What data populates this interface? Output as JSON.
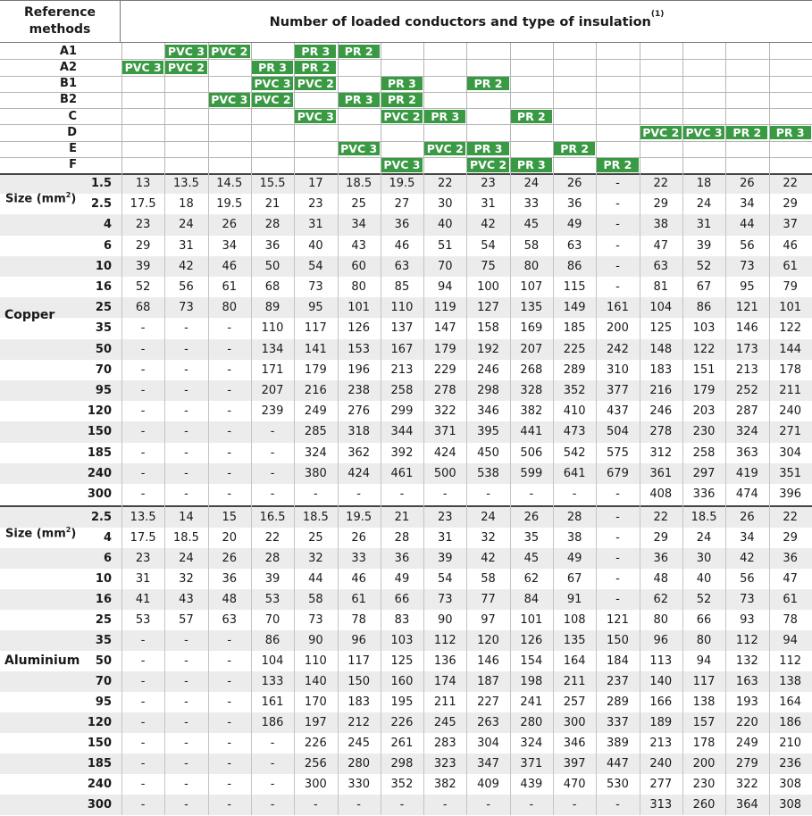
{
  "header": {
    "corner_label_line1": "Reference",
    "corner_label_line2": "methods",
    "title": "Number of loaded conductors and type of insulation",
    "title_note": "(1)"
  },
  "colors": {
    "tag_green": "#3a9a43",
    "stripe": "#ececec",
    "rule": "#9a9a9a"
  },
  "methods": [
    {
      "name": "A1",
      "tags": [
        {
          "col": 1,
          "label": "PVC 3"
        },
        {
          "col": 2,
          "label": "PVC 2"
        },
        {
          "col": 4,
          "label": "PR 3"
        },
        {
          "col": 5,
          "label": "PR 2"
        }
      ]
    },
    {
      "name": "A2",
      "tags": [
        {
          "col": 0,
          "label": "PVC 3"
        },
        {
          "col": 1,
          "label": "PVC 2"
        },
        {
          "col": 3,
          "label": "PR 3"
        },
        {
          "col": 4,
          "label": "PR 2"
        }
      ]
    },
    {
      "name": "B1",
      "tags": [
        {
          "col": 3,
          "label": "PVC 3"
        },
        {
          "col": 4,
          "label": "PVC 2"
        },
        {
          "col": 6,
          "label": "PR 3"
        },
        {
          "col": 8,
          "label": "PR 2"
        }
      ]
    },
    {
      "name": "B2",
      "tags": [
        {
          "col": 2,
          "label": "PVC 3"
        },
        {
          "col": 3,
          "label": "PVC 2"
        },
        {
          "col": 5,
          "label": "PR 3"
        },
        {
          "col": 6,
          "label": "PR 2"
        }
      ]
    },
    {
      "name": "C",
      "tags": [
        {
          "col": 4,
          "label": "PVC 3"
        },
        {
          "col": 6,
          "label": "PVC 2"
        },
        {
          "col": 7,
          "label": "PR 3"
        },
        {
          "col": 9,
          "label": "PR 2"
        }
      ]
    },
    {
      "name": "D",
      "tags": [
        {
          "col": 12,
          "label": "PVC 2"
        },
        {
          "col": 13,
          "label": "PVC 3"
        },
        {
          "col": 14,
          "label": "PR 2"
        },
        {
          "col": 15,
          "label": "PR 3"
        }
      ]
    },
    {
      "name": "E",
      "tags": [
        {
          "col": 5,
          "label": "PVC 3"
        },
        {
          "col": 7,
          "label": "PVC 2"
        },
        {
          "col": 8,
          "label": "PR 3"
        },
        {
          "col": 10,
          "label": "PR 2"
        }
      ]
    },
    {
      "name": "F",
      "tags": [
        {
          "col": 6,
          "label": "PVC 3"
        },
        {
          "col": 8,
          "label": "PVC 2"
        },
        {
          "col": 9,
          "label": "PR 3"
        },
        {
          "col": 11,
          "label": "PR 2"
        }
      ]
    }
  ],
  "sections": [
    {
      "name": "Copper",
      "size_label": "Size (mm",
      "size_sup": "2",
      "size_suffix": ")",
      "rows": [
        {
          "size": "1.5",
          "values": [
            "13",
            "13.5",
            "14.5",
            "15.5",
            "17",
            "18.5",
            "19.5",
            "22",
            "23",
            "24",
            "26",
            "-",
            "22",
            "18",
            "26",
            "22"
          ]
        },
        {
          "size": "2.5",
          "values": [
            "17.5",
            "18",
            "19.5",
            "21",
            "23",
            "25",
            "27",
            "30",
            "31",
            "33",
            "36",
            "-",
            "29",
            "24",
            "34",
            "29"
          ]
        },
        {
          "size": "4",
          "values": [
            "23",
            "24",
            "26",
            "28",
            "31",
            "34",
            "36",
            "40",
            "42",
            "45",
            "49",
            "-",
            "38",
            "31",
            "44",
            "37"
          ]
        },
        {
          "size": "6",
          "values": [
            "29",
            "31",
            "34",
            "36",
            "40",
            "43",
            "46",
            "51",
            "54",
            "58",
            "63",
            "-",
            "47",
            "39",
            "56",
            "46"
          ]
        },
        {
          "size": "10",
          "values": [
            "39",
            "42",
            "46",
            "50",
            "54",
            "60",
            "63",
            "70",
            "75",
            "80",
            "86",
            "-",
            "63",
            "52",
            "73",
            "61"
          ]
        },
        {
          "size": "16",
          "values": [
            "52",
            "56",
            "61",
            "68",
            "73",
            "80",
            "85",
            "94",
            "100",
            "107",
            "115",
            "-",
            "81",
            "67",
            "95",
            "79"
          ]
        },
        {
          "size": "25",
          "values": [
            "68",
            "73",
            "80",
            "89",
            "95",
            "101",
            "110",
            "119",
            "127",
            "135",
            "149",
            "161",
            "104",
            "86",
            "121",
            "101"
          ]
        },
        {
          "size": "35",
          "values": [
            "-",
            "-",
            "-",
            "110",
            "117",
            "126",
            "137",
            "147",
            "158",
            "169",
            "185",
            "200",
            "125",
            "103",
            "146",
            "122"
          ]
        },
        {
          "size": "50",
          "values": [
            "-",
            "-",
            "-",
            "134",
            "141",
            "153",
            "167",
            "179",
            "192",
            "207",
            "225",
            "242",
            "148",
            "122",
            "173",
            "144"
          ]
        },
        {
          "size": "70",
          "values": [
            "-",
            "-",
            "-",
            "171",
            "179",
            "196",
            "213",
            "229",
            "246",
            "268",
            "289",
            "310",
            "183",
            "151",
            "213",
            "178"
          ]
        },
        {
          "size": "95",
          "values": [
            "-",
            "-",
            "-",
            "207",
            "216",
            "238",
            "258",
            "278",
            "298",
            "328",
            "352",
            "377",
            "216",
            "179",
            "252",
            "211"
          ]
        },
        {
          "size": "120",
          "values": [
            "-",
            "-",
            "-",
            "239",
            "249",
            "276",
            "299",
            "322",
            "346",
            "382",
            "410",
            "437",
            "246",
            "203",
            "287",
            "240"
          ]
        },
        {
          "size": "150",
          "values": [
            "-",
            "-",
            "-",
            "-",
            "285",
            "318",
            "344",
            "371",
            "395",
            "441",
            "473",
            "504",
            "278",
            "230",
            "324",
            "271"
          ]
        },
        {
          "size": "185",
          "values": [
            "-",
            "-",
            "-",
            "-",
            "324",
            "362",
            "392",
            "424",
            "450",
            "506",
            "542",
            "575",
            "312",
            "258",
            "363",
            "304"
          ]
        },
        {
          "size": "240",
          "values": [
            "-",
            "-",
            "-",
            "-",
            "380",
            "424",
            "461",
            "500",
            "538",
            "599",
            "641",
            "679",
            "361",
            "297",
            "419",
            "351"
          ]
        },
        {
          "size": "300",
          "values": [
            "-",
            "-",
            "-",
            "-",
            "-",
            "-",
            "-",
            "-",
            "-",
            "-",
            "-",
            "-",
            "408",
            "336",
            "474",
            "396"
          ]
        }
      ]
    },
    {
      "name": "Aluminium",
      "size_label": "Size (mm",
      "size_sup": "2",
      "size_suffix": ")",
      "rows": [
        {
          "size": "2.5",
          "values": [
            "13.5",
            "14",
            "15",
            "16.5",
            "18.5",
            "19.5",
            "21",
            "23",
            "24",
            "26",
            "28",
            "-",
            "22",
            "18.5",
            "26",
            "22"
          ]
        },
        {
          "size": "4",
          "values": [
            "17.5",
            "18.5",
            "20",
            "22",
            "25",
            "26",
            "28",
            "31",
            "32",
            "35",
            "38",
            "-",
            "29",
            "24",
            "34",
            "29"
          ]
        },
        {
          "size": "6",
          "values": [
            "23",
            "24",
            "26",
            "28",
            "32",
            "33",
            "36",
            "39",
            "42",
            "45",
            "49",
            "-",
            "36",
            "30",
            "42",
            "36"
          ]
        },
        {
          "size": "10",
          "values": [
            "31",
            "32",
            "36",
            "39",
            "44",
            "46",
            "49",
            "54",
            "58",
            "62",
            "67",
            "-",
            "48",
            "40",
            "56",
            "47"
          ]
        },
        {
          "size": "16",
          "values": [
            "41",
            "43",
            "48",
            "53",
            "58",
            "61",
            "66",
            "73",
            "77",
            "84",
            "91",
            "-",
            "62",
            "52",
            "73",
            "61"
          ]
        },
        {
          "size": "25",
          "values": [
            "53",
            "57",
            "63",
            "70",
            "73",
            "78",
            "83",
            "90",
            "97",
            "101",
            "108",
            "121",
            "80",
            "66",
            "93",
            "78"
          ]
        },
        {
          "size": "35",
          "values": [
            "-",
            "-",
            "-",
            "86",
            "90",
            "96",
            "103",
            "112",
            "120",
            "126",
            "135",
            "150",
            "96",
            "80",
            "112",
            "94"
          ]
        },
        {
          "size": "50",
          "values": [
            "-",
            "-",
            "-",
            "104",
            "110",
            "117",
            "125",
            "136",
            "146",
            "154",
            "164",
            "184",
            "113",
            "94",
            "132",
            "112"
          ]
        },
        {
          "size": "70",
          "values": [
            "-",
            "-",
            "-",
            "133",
            "140",
            "150",
            "160",
            "174",
            "187",
            "198",
            "211",
            "237",
            "140",
            "117",
            "163",
            "138"
          ]
        },
        {
          "size": "95",
          "values": [
            "-",
            "-",
            "-",
            "161",
            "170",
            "183",
            "195",
            "211",
            "227",
            "241",
            "257",
            "289",
            "166",
            "138",
            "193",
            "164"
          ]
        },
        {
          "size": "120",
          "values": [
            "-",
            "-",
            "-",
            "186",
            "197",
            "212",
            "226",
            "245",
            "263",
            "280",
            "300",
            "337",
            "189",
            "157",
            "220",
            "186"
          ]
        },
        {
          "size": "150",
          "values": [
            "-",
            "-",
            "-",
            "-",
            "226",
            "245",
            "261",
            "283",
            "304",
            "324",
            "346",
            "389",
            "213",
            "178",
            "249",
            "210"
          ]
        },
        {
          "size": "185",
          "values": [
            "-",
            "-",
            "-",
            "-",
            "256",
            "280",
            "298",
            "323",
            "347",
            "371",
            "397",
            "447",
            "240",
            "200",
            "279",
            "236"
          ]
        },
        {
          "size": "240",
          "values": [
            "-",
            "-",
            "-",
            "-",
            "300",
            "330",
            "352",
            "382",
            "409",
            "439",
            "470",
            "530",
            "277",
            "230",
            "322",
            "308"
          ]
        },
        {
          "size": "300",
          "values": [
            "-",
            "-",
            "-",
            "-",
            "-",
            "-",
            "-",
            "-",
            "-",
            "-",
            "-",
            "-",
            "313",
            "260",
            "364",
            "308"
          ]
        }
      ]
    }
  ]
}
